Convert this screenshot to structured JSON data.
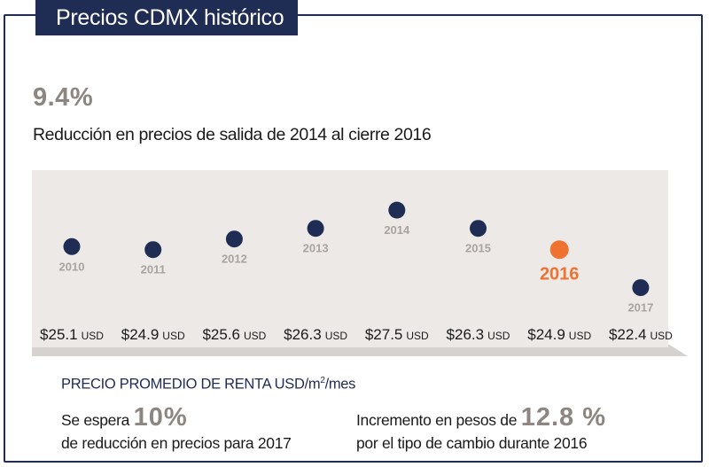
{
  "header": {
    "title": "Precios CDMX histórico"
  },
  "headline": {
    "value": "9.4%",
    "description": "Reducción en precios de salida de 2014 al cierre 2016"
  },
  "chart_data": {
    "type": "scatter",
    "title": "PRECIO PROMEDIO DE RENTA USD/m2/mes",
    "unit_prefix": "PRECIO PROMEDIO DE RENTA USD/m",
    "unit_sup": "2",
    "unit_suffix": "/mes",
    "categories": [
      "2010",
      "2011",
      "2012",
      "2013",
      "2014",
      "2015",
      "2016",
      "2017"
    ],
    "values": [
      25.1,
      24.9,
      25.6,
      26.3,
      27.5,
      26.3,
      24.9,
      22.4
    ],
    "value_labels": [
      "$25.1",
      "$24.9",
      "$25.6",
      "$26.3",
      "$27.5",
      "$26.3",
      "$24.9",
      "$22.4"
    ],
    "currency_suffix": "USD",
    "highlight_index": 6,
    "colors": {
      "point": "#1f2d55",
      "highlight": "#ee7330",
      "year": "#a9a3a0"
    },
    "ylim": [
      21.5,
      28.5
    ]
  },
  "notes": {
    "left": {
      "pre": "Se espera",
      "highlight": "10%",
      "line2": "de reducción en precios para 2017"
    },
    "right": {
      "pre": "Incremento en pesos de",
      "highlight": "12.8 %",
      "line2": "por el tipo de cambio durante 2016"
    }
  },
  "colors": {
    "navy": "#1f2d55",
    "accent": "#ee7330",
    "gray": "#8d8580",
    "panel": "#ede9e7"
  }
}
